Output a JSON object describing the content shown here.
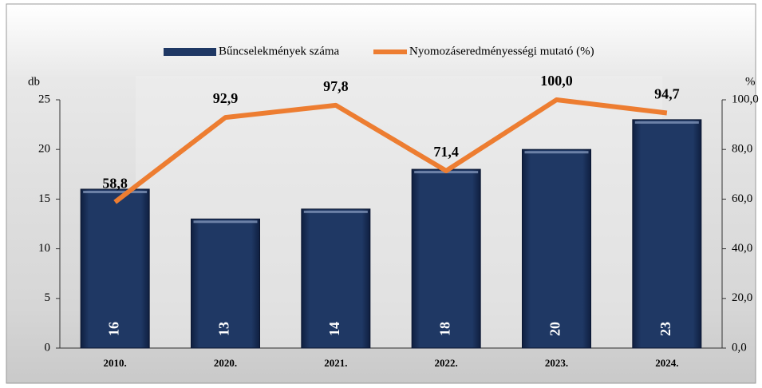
{
  "chart_data": {
    "type": "bar-line",
    "categories": [
      "2010.",
      "2020.",
      "2021.",
      "2022.",
      "2023.",
      "2024."
    ],
    "series": [
      {
        "name": "Bűncselekmények száma",
        "type": "bar",
        "color": "#1f3864",
        "values": [
          16,
          13,
          14,
          18,
          20,
          23
        ]
      },
      {
        "name": "Nyomozáseredményességi mutató (%)",
        "type": "line",
        "axis": "y2",
        "color": "#ed7d31",
        "values": [
          58.8,
          92.9,
          97.8,
          71.4,
          100.0,
          94.7
        ],
        "value_labels": [
          "58,8",
          "92,9",
          "97,8",
          "71,4",
          "100,0",
          "94,7"
        ]
      }
    ],
    "ylabel": "db",
    "y2label": "%",
    "ylim": [
      0,
      25
    ],
    "yticks": [
      0,
      5,
      10,
      15,
      20,
      25
    ],
    "y2lim": [
      0,
      100
    ],
    "y2ticks": [
      {
        "value": 0,
        "label": "0,0"
      },
      {
        "value": 20,
        "label": "20,0"
      },
      {
        "value": 40,
        "label": "40,0"
      },
      {
        "value": 60,
        "label": "60,0"
      },
      {
        "value": 80,
        "label": "80,0"
      },
      {
        "value": 100,
        "label": "100,0"
      }
    ],
    "legend": "top"
  }
}
